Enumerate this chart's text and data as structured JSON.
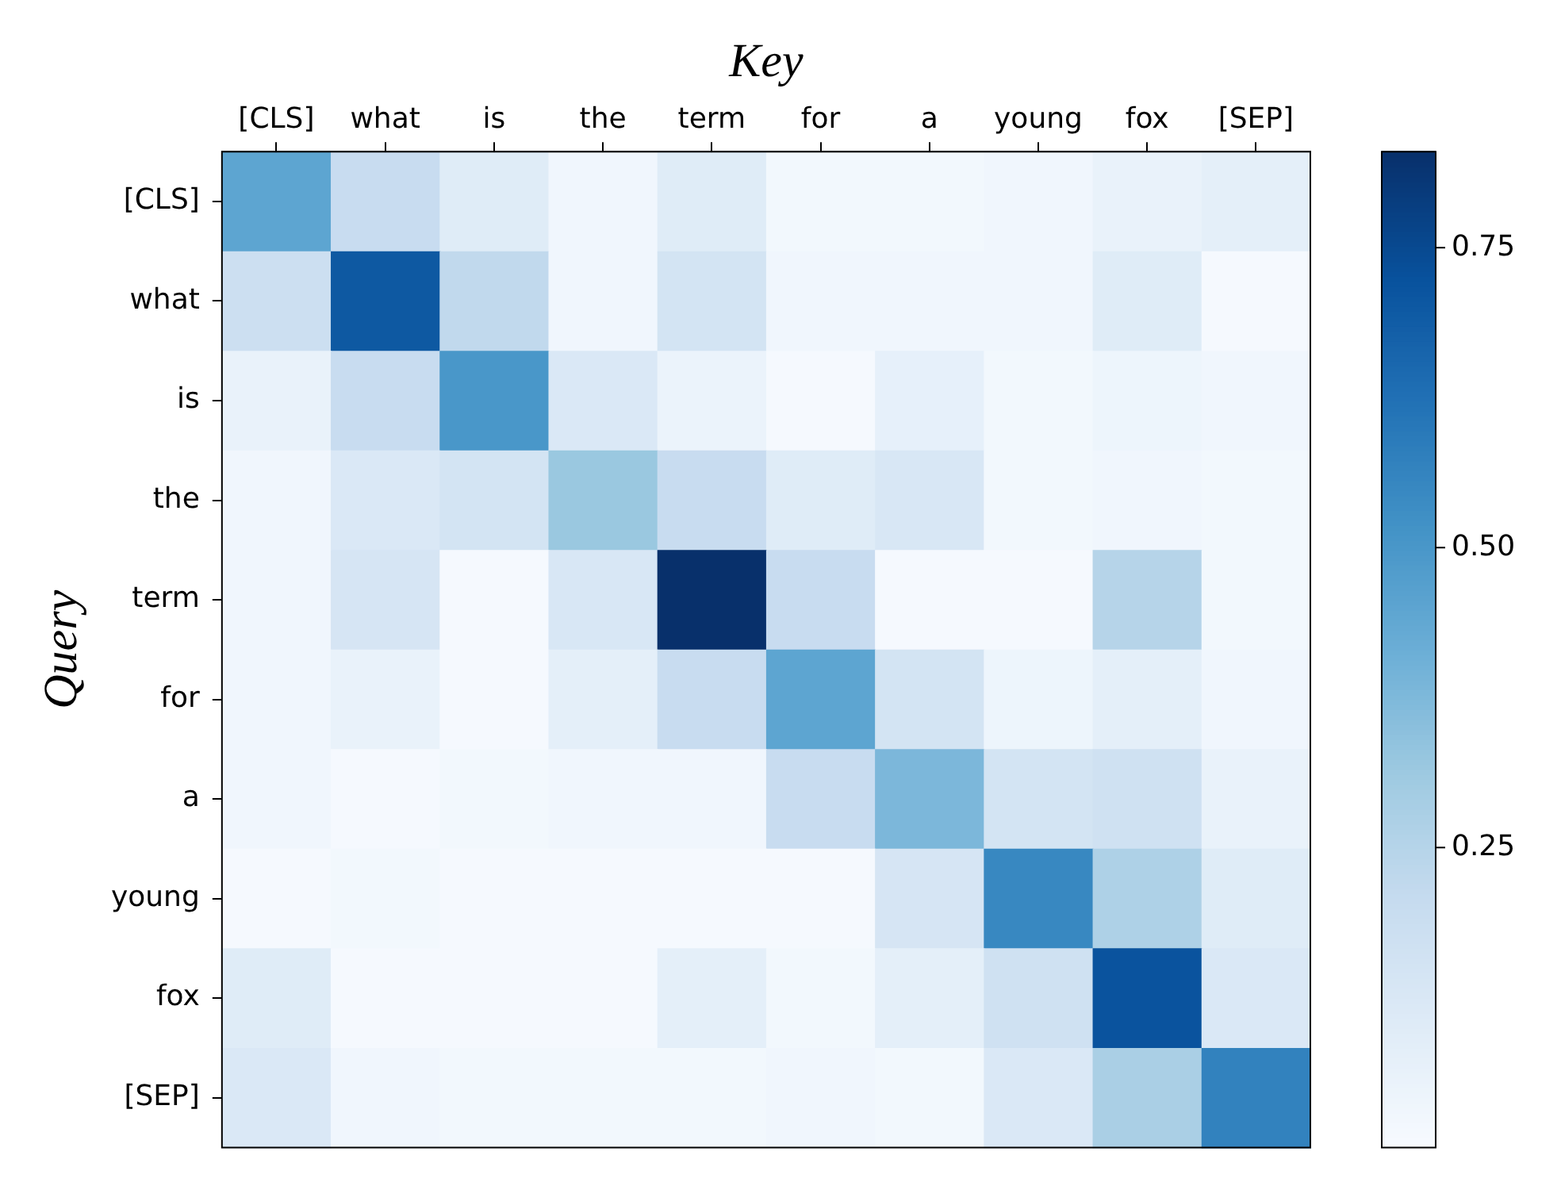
{
  "chart_data": {
    "type": "heatmap",
    "xlabel": "Key",
    "ylabel": "Query",
    "categories": [
      "[CLS]",
      "what",
      "is",
      "the",
      "term",
      "for",
      "a",
      "young",
      "fox",
      "[SEP]"
    ],
    "y_categories": [
      "[CLS]",
      "what",
      "is",
      "the",
      "term",
      "for",
      "a",
      "young",
      "fox",
      "[SEP]"
    ],
    "cells": [
      [
        0.45,
        0.2,
        0.1,
        0.03,
        0.1,
        0.02,
        0.02,
        0.03,
        0.06,
        0.08
      ],
      [
        0.18,
        0.7,
        0.22,
        0.03,
        0.15,
        0.03,
        0.03,
        0.03,
        0.1,
        0.01
      ],
      [
        0.06,
        0.2,
        0.5,
        0.12,
        0.05,
        0.01,
        0.07,
        0.02,
        0.04,
        0.03
      ],
      [
        0.03,
        0.12,
        0.15,
        0.32,
        0.2,
        0.1,
        0.13,
        0.02,
        0.03,
        0.02
      ],
      [
        0.03,
        0.14,
        0.01,
        0.13,
        0.83,
        0.2,
        0.01,
        0.01,
        0.25,
        0.02
      ],
      [
        0.03,
        0.06,
        0.01,
        0.08,
        0.2,
        0.45,
        0.15,
        0.04,
        0.08,
        0.03
      ],
      [
        0.03,
        0.01,
        0.02,
        0.03,
        0.03,
        0.2,
        0.38,
        0.15,
        0.17,
        0.06
      ],
      [
        0.01,
        0.02,
        0.01,
        0.01,
        0.01,
        0.01,
        0.14,
        0.55,
        0.27,
        0.1
      ],
      [
        0.1,
        0.01,
        0.01,
        0.01,
        0.08,
        0.02,
        0.08,
        0.17,
        0.72,
        0.12
      ],
      [
        0.12,
        0.03,
        0.02,
        0.02,
        0.02,
        0.03,
        0.02,
        0.12,
        0.28,
        0.57
      ]
    ],
    "clim": [
      0,
      0.83
    ],
    "cticks": [
      0.25,
      {
        "value": 0.5,
        "label": "0.50"
      },
      0.75
    ]
  }
}
